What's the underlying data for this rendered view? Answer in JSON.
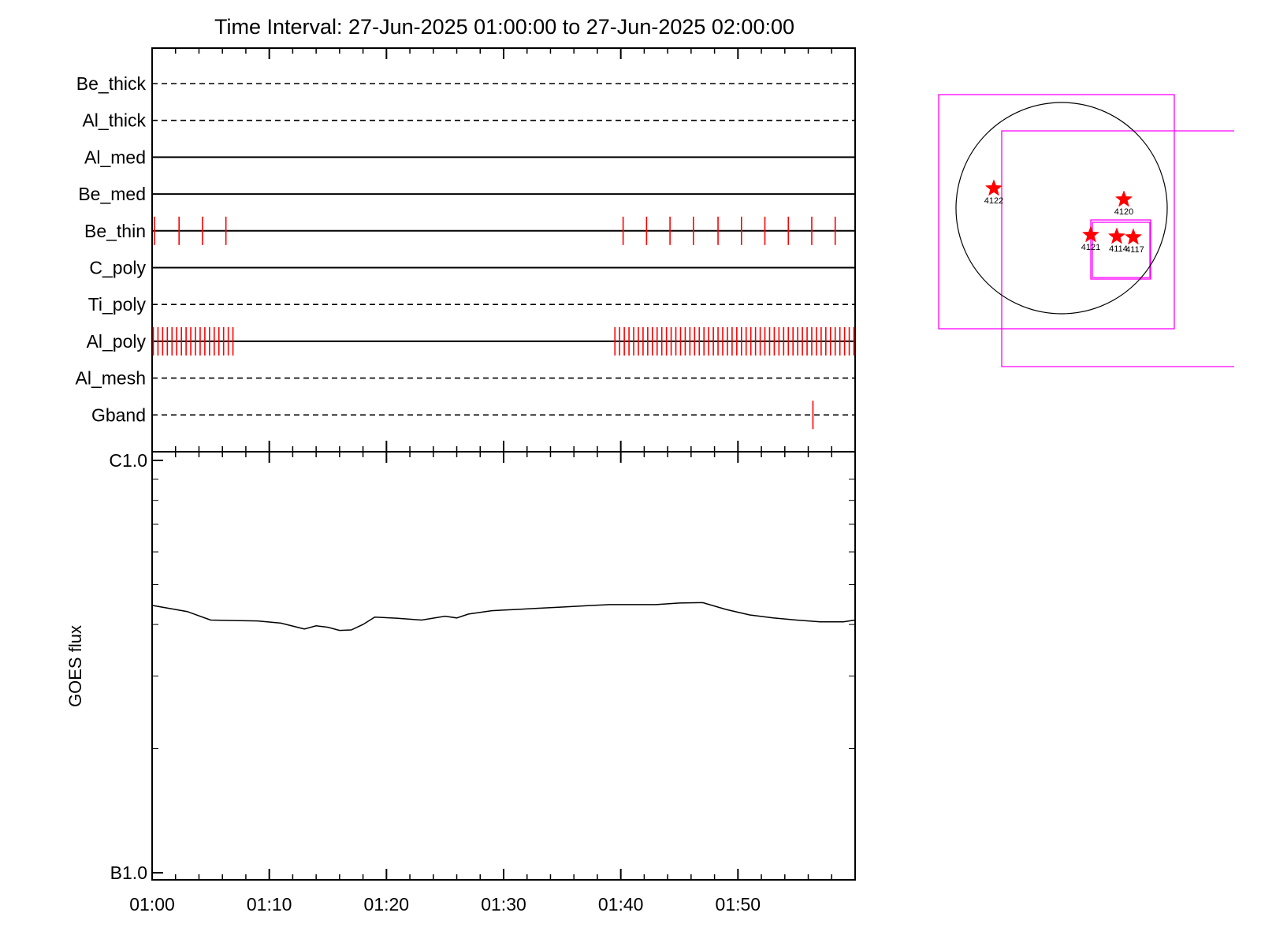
{
  "title": "Time Interval: 27-Jun-2025 01:00:00 to 27-Jun-2025 02:00:00",
  "colors": {
    "events": "#ff0000",
    "boxes": "#ff00ff",
    "lines": "#000000",
    "stars": "#ff0000"
  },
  "chart_data": [
    {
      "type": "line",
      "name": "filter-timeline",
      "x_unit": "minutes after 01:00",
      "xlim": [
        0,
        60
      ],
      "rows": [
        {
          "label": "Be_thick",
          "style": "dashed",
          "ticks": []
        },
        {
          "label": "Al_thick",
          "style": "dashed",
          "ticks": []
        },
        {
          "label": "Al_med",
          "style": "solid",
          "ticks": []
        },
        {
          "label": "Be_med",
          "style": "solid",
          "ticks": []
        },
        {
          "label": "Be_thin",
          "style": "solid",
          "ticks": [
            0.2,
            2.3,
            4.3,
            6.3,
            40.2,
            42.2,
            44.2,
            46.2,
            48.3,
            50.3,
            52.3,
            54.3,
            56.3,
            58.3
          ]
        },
        {
          "label": "C_poly",
          "style": "solid",
          "ticks": []
        },
        {
          "label": "Ti_poly",
          "style": "dashed",
          "ticks": []
        },
        {
          "label": "Al_poly",
          "style": "solid",
          "ticks": [
            0.1,
            0.5,
            0.9,
            1.3,
            1.7,
            2.1,
            2.5,
            2.9,
            3.3,
            3.7,
            4.1,
            4.5,
            4.9,
            5.3,
            5.7,
            6.1,
            6.5,
            6.9,
            39.5,
            39.9,
            40.3,
            40.7,
            41.1,
            41.5,
            41.9,
            42.3,
            42.7,
            43.1,
            43.5,
            43.9,
            44.3,
            44.7,
            45.1,
            45.5,
            45.9,
            46.3,
            46.7,
            47.1,
            47.5,
            47.9,
            48.3,
            48.7,
            49.1,
            49.5,
            49.9,
            50.3,
            50.7,
            51.1,
            51.5,
            51.9,
            52.3,
            52.7,
            53.1,
            53.5,
            53.9,
            54.3,
            54.7,
            55.1,
            55.5,
            55.9,
            56.3,
            56.7,
            57.1,
            57.5,
            57.9,
            58.3,
            58.7,
            59.1,
            59.5,
            59.9
          ]
        },
        {
          "label": "Al_mesh",
          "style": "dashed",
          "ticks": []
        },
        {
          "label": "Gband",
          "style": "dashed",
          "ticks": [
            56.4
          ]
        }
      ]
    },
    {
      "type": "line",
      "name": "goes-flux",
      "ylabel": "GOES flux",
      "ylim": [
        1e-07,
        1e-06
      ],
      "y_scale": "log",
      "ytick_labels": [
        {
          "value": 1e-07,
          "label": "B1.0"
        },
        {
          "value": 1e-06,
          "label": "C1.0"
        }
      ],
      "x_unit": "minutes after 01:00",
      "xlim": [
        0,
        60
      ],
      "xtick_labels": [
        {
          "value": 0,
          "label": "01:00"
        },
        {
          "value": 10,
          "label": "01:10"
        },
        {
          "value": 20,
          "label": "01:20"
        },
        {
          "value": 30,
          "label": "01:30"
        },
        {
          "value": 40,
          "label": "01:40"
        },
        {
          "value": 50,
          "label": "01:50"
        }
      ],
      "series": [
        {
          "x": [
            0,
            3,
            5,
            7,
            9,
            11,
            13,
            14,
            15,
            16,
            17,
            18,
            19,
            21,
            23,
            25,
            26,
            27,
            29,
            31,
            33,
            35,
            37,
            39,
            41,
            43,
            45,
            47,
            49,
            51,
            53,
            55,
            57,
            59,
            60
          ],
          "y": [
            4.45e-07,
            4.3e-07,
            4.1e-07,
            4.09e-07,
            4.08e-07,
            4.03e-07,
            3.9e-07,
            3.97e-07,
            3.94e-07,
            3.87e-07,
            3.88e-07,
            4e-07,
            4.17e-07,
            4.14e-07,
            4.1e-07,
            4.19e-07,
            4.15e-07,
            4.24e-07,
            4.32e-07,
            4.35e-07,
            4.38e-07,
            4.41e-07,
            4.44e-07,
            4.47e-07,
            4.47e-07,
            4.47e-07,
            4.51e-07,
            4.52e-07,
            4.35e-07,
            4.22e-07,
            4.15e-07,
            4.1e-07,
            4.06e-07,
            4.06e-07,
            4.1e-07
          ]
        }
      ]
    },
    {
      "type": "scatter",
      "name": "sun-map",
      "points": [
        {
          "label": "4122"
        },
        {
          "label": "4120"
        },
        {
          "label": "4121"
        },
        {
          "label": "4114"
        },
        {
          "label": "4117"
        }
      ]
    }
  ]
}
